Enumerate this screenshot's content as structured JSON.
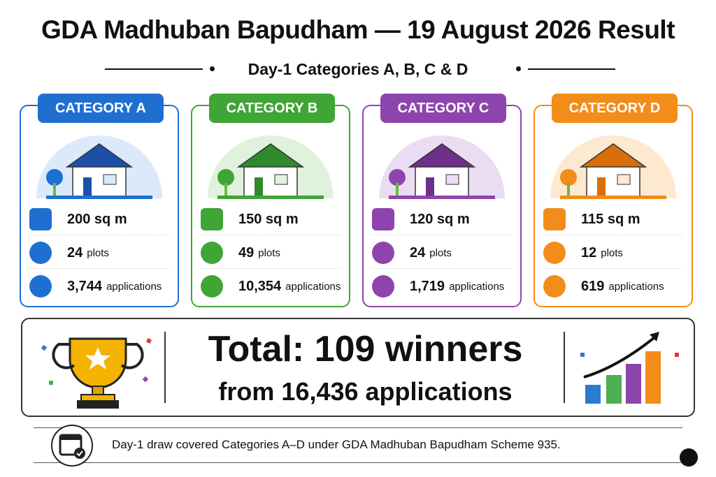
{
  "header": {
    "title": "GDA Madhuban Bapudham — 19 August 2026 Result",
    "subtitle": "Day-1 Categories A, B, C & D"
  },
  "categories": [
    {
      "name": "CATEGORY A",
      "area": "200 sq m",
      "plots": "24",
      "plots_label": "plots",
      "applications": "3,744",
      "applications_label": "applications"
    },
    {
      "name": "CATEGORY B",
      "area": "150 sq m",
      "plots": "49",
      "plots_label": "plots",
      "applications": "10,354",
      "applications_label": "applications"
    },
    {
      "name": "CATEGORY C",
      "area": "120 sq m",
      "plots": "24",
      "plots_label": "plots",
      "applications": "1,719",
      "applications_label": "applications"
    },
    {
      "name": "CATEGORY D",
      "area": "115 sq m",
      "plots": "12",
      "plots_label": "plots",
      "applications": "619",
      "applications_label": "applications"
    }
  ],
  "total": {
    "line1": "Total: 109 winners",
    "line2": "from 16,436 applications"
  },
  "footer": {
    "note": "Day-1 draw covered Categories A–D under GDA Madhuban Bapudham Scheme 935."
  }
}
